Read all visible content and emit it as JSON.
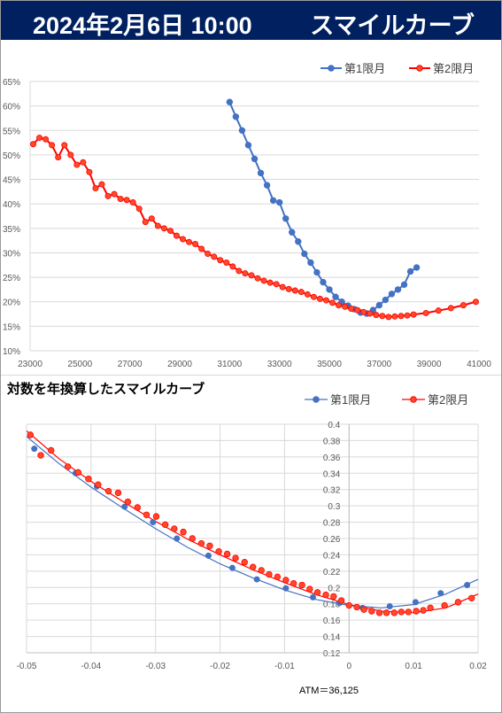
{
  "header": {
    "date_title": "2024年2月6日 10:00",
    "curve_title": "スマイルカーブ"
  },
  "colors": {
    "header_bg": "#002060",
    "series1": "#4472C4",
    "series2": "#FF0000",
    "series2_fill": "#ff4a2a",
    "grid": "#d9d9d9"
  },
  "chart_data": [
    {
      "type": "line",
      "xlabel": "",
      "ylabel": "",
      "xlim": [
        23000,
        41000
      ],
      "ylim": [
        10,
        65
      ],
      "x_ticks": [
        23000,
        25000,
        27000,
        29000,
        31000,
        33000,
        35000,
        37000,
        39000,
        41000
      ],
      "y_ticks": [
        10,
        15,
        20,
        25,
        30,
        35,
        40,
        45,
        50,
        55,
        60,
        65
      ],
      "y_unit": "%",
      "grid": "horizontal",
      "legend": "top-right",
      "series": [
        {
          "name": "第1限月",
          "x": [
            31000,
            31250,
            31500,
            31750,
            32000,
            32250,
            32500,
            32750,
            33000,
            33250,
            33500,
            33750,
            34000,
            34250,
            34500,
            34750,
            35000,
            35250,
            35500,
            35750,
            36000,
            36250,
            36500,
            36750,
            37000,
            37250,
            37500,
            37750,
            38000,
            38250,
            38500
          ],
          "y": [
            60.8,
            57.8,
            55.0,
            52.0,
            49.2,
            46.3,
            43.8,
            40.7,
            40.3,
            37.0,
            34.2,
            32.3,
            29.8,
            28.0,
            26.0,
            24.0,
            22.5,
            21.0,
            20.0,
            19.2,
            18.5,
            17.8,
            17.6,
            18.3,
            19.3,
            20.4,
            21.6,
            22.5,
            23.5,
            26.2,
            27.0
          ]
        },
        {
          "name": "第2限月",
          "x": [
            23125,
            23375,
            23625,
            23875,
            24125,
            24375,
            24625,
            24875,
            25125,
            25375,
            25625,
            25875,
            26125,
            26375,
            26625,
            26875,
            27125,
            27375,
            27625,
            27875,
            28125,
            28375,
            28625,
            28875,
            29125,
            29375,
            29625,
            29875,
            30125,
            30375,
            30625,
            30875,
            31125,
            31375,
            31625,
            31875,
            32125,
            32375,
            32625,
            32875,
            33125,
            33375,
            33625,
            33875,
            34125,
            34375,
            34625,
            34875,
            35125,
            35375,
            35625,
            35875,
            36125,
            36375,
            36625,
            36875,
            37125,
            37375,
            37625,
            37875,
            38125,
            38375,
            38875,
            39375,
            39875,
            40375,
            40875
          ],
          "y": [
            52.2,
            53.5,
            53.2,
            52.0,
            49.5,
            52.0,
            50.0,
            48.0,
            48.5,
            46.5,
            43.2,
            44.0,
            41.6,
            42.0,
            41.0,
            40.8,
            40.3,
            39.0,
            36.3,
            37.0,
            35.5,
            35.0,
            34.5,
            33.5,
            32.8,
            32.2,
            31.8,
            30.8,
            29.8,
            29.2,
            28.5,
            28.0,
            27.2,
            26.3,
            25.8,
            25.4,
            24.8,
            24.3,
            23.9,
            23.6,
            23.0,
            22.6,
            22.3,
            22.0,
            21.5,
            21.0,
            20.6,
            20.3,
            19.8,
            19.3,
            19.0,
            18.6,
            18.3,
            17.9,
            17.6,
            17.3,
            17.1,
            16.9,
            17.0,
            17.1,
            17.2,
            17.4,
            17.7,
            18.2,
            18.7,
            19.3,
            20.0
          ]
        }
      ]
    },
    {
      "type": "scatter",
      "title": "対数を年換算したスマイルカーブ",
      "xlabel": "",
      "ylabel": "",
      "xlim": [
        -0.05,
        0.02
      ],
      "ylim": [
        0.12,
        0.4
      ],
      "x_ticks": [
        -0.05,
        -0.04,
        -0.03,
        -0.02,
        -0.01,
        0,
        0.01,
        0.02
      ],
      "x_tick_labels": [
        "-0.05",
        "-0.04",
        "-0.03",
        "-0.02",
        "-0.01",
        "0",
        "0.01",
        "0.02"
      ],
      "y_ticks": [
        0.12,
        0.14,
        0.16,
        0.18,
        0.2,
        0.22,
        0.24,
        0.26,
        0.28,
        0.3,
        0.32,
        0.34,
        0.36,
        0.38,
        0.4
      ],
      "y_tick_labels": [
        "0.12",
        "0.14",
        "0.16",
        "0.18",
        "0.2",
        "0.22",
        "0.24",
        "0.26",
        "0.28",
        "0.3",
        "0.32",
        "0.34",
        "0.36",
        "0.38",
        "0.4"
      ],
      "grid": "both",
      "legend": "top-right",
      "annotation": "ATM＝36,125",
      "series": [
        {
          "name": "第1限月",
          "x": [
            -0.0488,
            -0.0424,
            -0.0391,
            -0.0348,
            -0.0304,
            -0.0267,
            -0.0218,
            -0.0181,
            -0.0143,
            -0.0098,
            -0.0056,
            -0.0015,
            0.0021,
            0.0063,
            0.0103,
            0.0142,
            0.0183
          ],
          "y": [
            0.37,
            0.34,
            0.324,
            0.299,
            0.28,
            0.26,
            0.239,
            0.224,
            0.21,
            0.199,
            0.188,
            0.181,
            0.175,
            0.177,
            0.182,
            0.193,
            0.203
          ],
          "fit_x": [
            -0.05,
            -0.045,
            -0.04,
            -0.035,
            -0.03,
            -0.025,
            -0.02,
            -0.015,
            -0.01,
            -0.005,
            0,
            0.005,
            0.01,
            0.015,
            0.02
          ],
          "fit_y": [
            0.385,
            0.352,
            0.323,
            0.297,
            0.272,
            0.249,
            0.229,
            0.212,
            0.197,
            0.185,
            0.178,
            0.175,
            0.179,
            0.192,
            0.21
          ]
        },
        {
          "name": "第2限月",
          "x": [
            -0.0494,
            -0.0478,
            -0.0462,
            -0.0436,
            -0.042,
            -0.0404,
            -0.0389,
            -0.0373,
            -0.0358,
            -0.0343,
            -0.0328,
            -0.0314,
            -0.0299,
            -0.0285,
            -0.0271,
            -0.0257,
            -0.0243,
            -0.0229,
            -0.0216,
            -0.0202,
            -0.0189,
            -0.0176,
            -0.0162,
            -0.0149,
            -0.0136,
            -0.0124,
            -0.0111,
            -0.0098,
            -0.0086,
            -0.0073,
            -0.0061,
            -0.0049,
            -0.0036,
            -0.0024,
            -0.0012,
            0.0,
            0.0012,
            0.0023,
            0.0035,
            0.0047,
            0.0058,
            0.007,
            0.0081,
            0.0092,
            0.0104,
            0.0115,
            0.0126,
            0.0148,
            0.0169,
            0.019
          ],
          "y": [
            0.387,
            0.362,
            0.368,
            0.348,
            0.341,
            0.333,
            0.326,
            0.318,
            0.316,
            0.305,
            0.298,
            0.289,
            0.287,
            0.277,
            0.272,
            0.268,
            0.26,
            0.254,
            0.251,
            0.244,
            0.241,
            0.236,
            0.231,
            0.225,
            0.221,
            0.216,
            0.213,
            0.209,
            0.205,
            0.203,
            0.198,
            0.194,
            0.191,
            0.189,
            0.184,
            0.178,
            0.176,
            0.173,
            0.171,
            0.169,
            0.169,
            0.169,
            0.17,
            0.17,
            0.171,
            0.172,
            0.175,
            0.178,
            0.182,
            0.187
          ],
          "fit_x": [
            -0.05,
            -0.045,
            -0.04,
            -0.035,
            -0.03,
            -0.025,
            -0.02,
            -0.015,
            -0.01,
            -0.005,
            0,
            0.005,
            0.01,
            0.015,
            0.02
          ],
          "fit_y": [
            0.392,
            0.358,
            0.33,
            0.305,
            0.281,
            0.259,
            0.24,
            0.222,
            0.206,
            0.191,
            0.179,
            0.171,
            0.169,
            0.175,
            0.192
          ]
        }
      ]
    }
  ]
}
